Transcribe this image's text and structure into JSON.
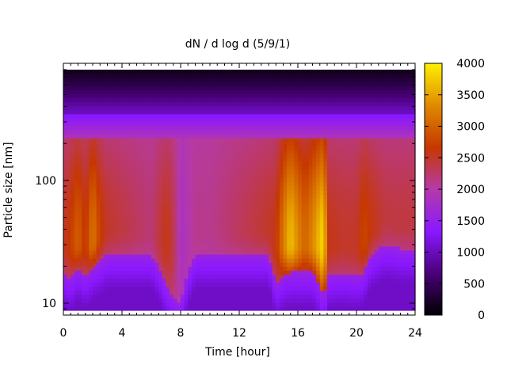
{
  "chart_data": {
    "type": "heatmap",
    "title": "dN / d log d (5/9/1)",
    "xlabel": "Time [hour]",
    "ylabel": "Particle size [nm]",
    "xlim": [
      0,
      24
    ],
    "ylim": [
      8,
      900
    ],
    "y_scale": "log",
    "x_ticks": [
      "0",
      "4",
      "8",
      "12",
      "16",
      "20",
      "24"
    ],
    "x_tick_values": [
      0,
      4,
      8,
      12,
      16,
      20,
      24
    ],
    "y_ticks": [
      "10",
      "100"
    ],
    "y_tick_values": [
      10,
      100
    ],
    "colorbar": {
      "min": 0,
      "max": 4000,
      "ticks": [
        "0",
        "500",
        "1000",
        "1500",
        "2000",
        "2500",
        "3000",
        "3500",
        "4000"
      ],
      "tick_values": [
        0,
        500,
        1000,
        1500,
        2000,
        2500,
        3000,
        3500,
        4000
      ],
      "colormap": [
        "#000000",
        "#4a007a",
        "#8a18ff",
        "#b53aa8",
        "#c63800",
        "#e08a00",
        "#fff000"
      ]
    },
    "grid": false,
    "series_note": "Concentration is high (2000-3000) between about 20 and 200 nm for most of the day, with bright peaks near 15.5 h and 17.8 h around 30 nm and a dip near 8 h.",
    "time_profile": {
      "x": [
        0,
        0.5,
        1,
        1.5,
        2,
        2.5,
        3,
        4,
        5,
        6,
        6.5,
        7,
        7.5,
        8,
        9,
        10,
        11,
        12,
        13,
        14,
        14.5,
        15,
        15.5,
        16,
        16.5,
        17,
        17.5,
        17.8,
        18,
        19,
        20,
        20.5,
        21,
        22,
        23,
        24
      ],
      "peak_value": [
        2500,
        2700,
        3000,
        2600,
        3200,
        2700,
        2500,
        2400,
        2300,
        2200,
        2400,
        2600,
        2400,
        1800,
        2100,
        2100,
        2200,
        2300,
        2400,
        2500,
        2600,
        3200,
        3700,
        3300,
        3000,
        3300,
        3700,
        3900,
        2600,
        2500,
        2500,
        2800,
        2600,
        2400,
        2400,
        2400
      ],
      "lower_edge_nm": [
        18,
        16,
        20,
        17,
        20,
        22,
        25,
        25,
        25,
        25,
        20,
        14,
        11,
        10,
        25,
        25,
        25,
        25,
        25,
        25,
        14,
        17,
        18,
        18,
        18,
        18,
        14,
        10,
        17,
        18,
        17,
        18,
        25,
        30,
        28,
        28
      ]
    }
  }
}
